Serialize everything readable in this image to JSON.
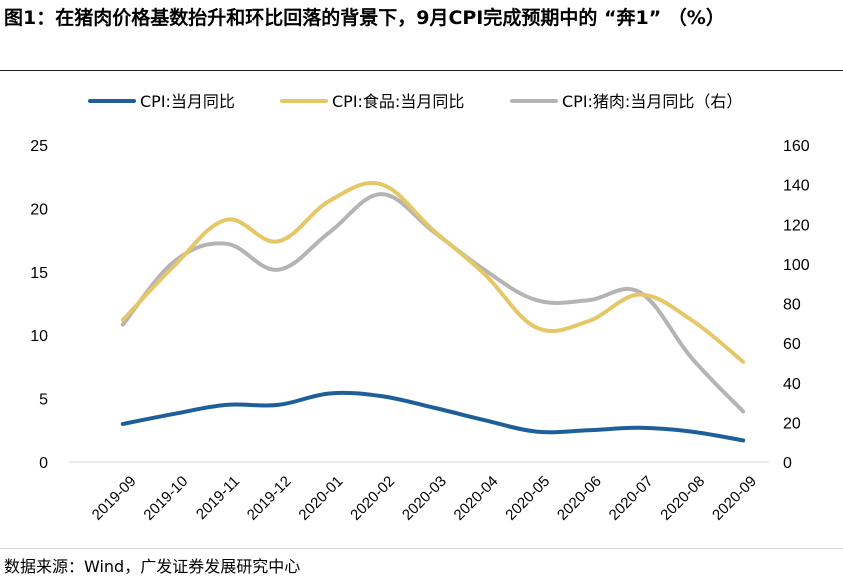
{
  "figure": {
    "title": "图1：在猪肉价格基数抬升和环比回落的背景下，9月CPI完成预期中的 “奔1” （%）",
    "source": "数据来源：Wind，广发证券发展研究中心"
  },
  "chart_data": {
    "type": "line",
    "categories": [
      "2019-09",
      "2019-10",
      "2019-11",
      "2019-12",
      "2020-01",
      "2020-02",
      "2020-03",
      "2020-04",
      "2020-05",
      "2020-06",
      "2020-07",
      "2020-08",
      "2020-09"
    ],
    "series": [
      {
        "name": "CPI:当月同比",
        "axis": "left",
        "color": "#1f5f99",
        "values": [
          3.0,
          3.8,
          4.5,
          4.5,
          5.4,
          5.2,
          4.3,
          3.3,
          2.4,
          2.5,
          2.7,
          2.4,
          1.7
        ]
      },
      {
        "name": "CPI:食品:当月同比",
        "axis": "left",
        "color": "#e6c767",
        "values": [
          11.2,
          15.5,
          19.1,
          17.4,
          20.6,
          21.9,
          18.3,
          14.8,
          10.6,
          11.1,
          13.2,
          11.2,
          7.9
        ]
      },
      {
        "name": "CPI:猪肉:当月同比（右）",
        "axis": "right",
        "color": "#b4b4b4",
        "values": [
          69.3,
          101.3,
          110.2,
          97.0,
          116.0,
          135.2,
          116.4,
          96.9,
          81.7,
          81.6,
          85.7,
          52.6,
          25.5
        ]
      }
    ],
    "y_left": {
      "min": 0,
      "max": 25,
      "ticks": [
        0,
        5,
        10,
        15,
        20,
        25
      ]
    },
    "y_right": {
      "min": 0,
      "max": 160,
      "ticks": [
        0,
        20,
        40,
        60,
        80,
        100,
        120,
        140,
        160
      ]
    },
    "legend_position": "top",
    "grid": false
  }
}
